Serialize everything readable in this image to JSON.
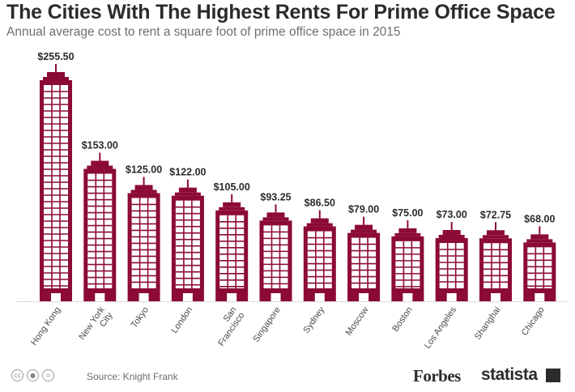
{
  "chart_data": {
    "type": "bar",
    "title": "The Cities With The Highest Rents For Prime Office Space",
    "subtitle": "Annual average cost to rent a square foot of prime office space in 2015",
    "categories": [
      "Hong Kong",
      "New York City",
      "Tokyo",
      "London",
      "San Francisco",
      "Singapore",
      "Sydney",
      "Moscow",
      "Boston",
      "Los Angeles",
      "Shanghai",
      "Chicago"
    ],
    "category_lines": [
      [
        "Hong Kong"
      ],
      [
        "New York",
        "City"
      ],
      [
        "Tokyo"
      ],
      [
        "London"
      ],
      [
        "San",
        "Francisco"
      ],
      [
        "Singapore"
      ],
      [
        "Sydney"
      ],
      [
        "Moscow"
      ],
      [
        "Boston"
      ],
      [
        "Los Angeles"
      ],
      [
        "Shanghai"
      ],
      [
        "Chicago"
      ]
    ],
    "values": [
      255.5,
      153.0,
      125.0,
      122.0,
      105.0,
      93.25,
      86.5,
      79.0,
      75.0,
      73.0,
      72.75,
      68.0
    ],
    "value_labels": [
      "$255.50",
      "$153.00",
      "$125.00",
      "$122.00",
      "$105.00",
      "$93.25",
      "$86.50",
      "$79.00",
      "$75.00",
      "$73.00",
      "$72.75",
      "$68.00"
    ],
    "ylim": [
      0,
      255.5
    ],
    "bar_color": "#8c0a36"
  },
  "footer": {
    "source": "Source: Knight Frank",
    "brand1": "Forbes",
    "brand2": "statista",
    "license_icons": [
      "creative-commons-icon",
      "attribution-icon",
      "no-derivatives-icon"
    ]
  }
}
